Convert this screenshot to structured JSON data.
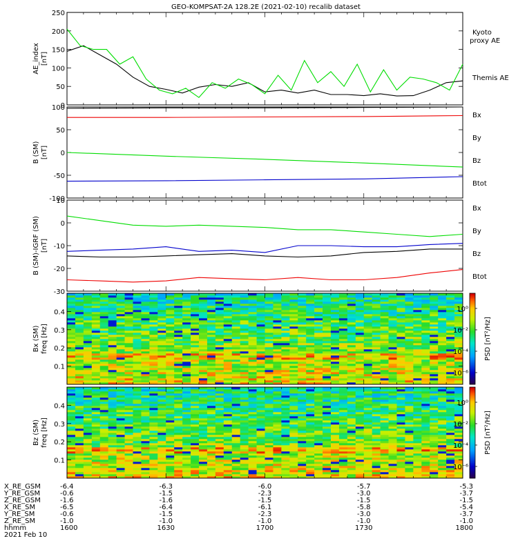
{
  "title": "GEO-KOMPSAT-2A 128.2E (2021-02-10) recalib dataset",
  "chart_data": [
    {
      "id": "ae",
      "type": "line",
      "ylabel": "AE_index",
      "yunit": "[nT]",
      "ylim": [
        0,
        250
      ],
      "yticks": [
        0,
        50,
        100,
        150,
        200,
        250
      ],
      "xlim": [
        0,
        120
      ],
      "series": [
        {
          "name": "Themis AE",
          "color": "#000000",
          "x": [
            0,
            5,
            10,
            15,
            20,
            25,
            30,
            35,
            40,
            45,
            50,
            55,
            60,
            65,
            70,
            75,
            80,
            85,
            90,
            95,
            100,
            105,
            110,
            115,
            120
          ],
          "values": [
            145,
            160,
            135,
            110,
            75,
            50,
            42,
            32,
            48,
            55,
            50,
            60,
            35,
            40,
            32,
            40,
            28,
            28,
            25,
            30,
            24,
            25,
            40,
            60,
            65
          ]
        },
        {
          "name": "Kyoto proxy AE",
          "color": "#00dd00",
          "x": [
            0,
            4,
            8,
            12,
            16,
            20,
            24,
            28,
            32,
            36,
            40,
            44,
            48,
            52,
            56,
            60,
            64,
            68,
            72,
            76,
            80,
            84,
            88,
            92,
            96,
            100,
            104,
            108,
            112,
            116,
            120
          ],
          "values": [
            205,
            160,
            150,
            150,
            110,
            130,
            70,
            40,
            30,
            45,
            20,
            60,
            45,
            70,
            55,
            30,
            80,
            40,
            120,
            60,
            90,
            50,
            110,
            35,
            95,
            40,
            75,
            70,
            60,
            40,
            110
          ]
        }
      ]
    },
    {
      "id": "b",
      "type": "line",
      "ylabel": "B (SM)",
      "yunit": "[nT]",
      "ylim": [
        -100,
        100
      ],
      "yticks": [
        -100,
        -50,
        0,
        50,
        100
      ],
      "xlim": [
        0,
        120
      ],
      "series": [
        {
          "name": "Btot",
          "color": "#000000",
          "x": [
            0,
            30,
            60,
            90,
            120
          ],
          "values": [
            97,
            98,
            98,
            99,
            100
          ]
        },
        {
          "name": "Bz",
          "color": "#ee0000",
          "x": [
            0,
            30,
            60,
            90,
            120
          ],
          "values": [
            77,
            77,
            78,
            79,
            81
          ]
        },
        {
          "name": "By",
          "color": "#00dd00",
          "x": [
            0,
            30,
            60,
            90,
            120
          ],
          "values": [
            0,
            -8,
            -15,
            -23,
            -32
          ]
        },
        {
          "name": "Bx",
          "color": "#0000cc",
          "x": [
            0,
            30,
            60,
            90,
            120
          ],
          "values": [
            -63,
            -62,
            -60,
            -58,
            -53
          ]
        }
      ]
    },
    {
      "id": "db",
      "type": "line",
      "ylabel": "B (SM)-IGRF (SM)",
      "yunit": "[nT]",
      "ylim": [
        -30,
        10
      ],
      "yticks": [
        -30,
        -20,
        -10,
        0,
        10
      ],
      "xlim": [
        0,
        120
      ],
      "series": [
        {
          "name": "By",
          "color": "#00dd00",
          "x": [
            0,
            10,
            20,
            30,
            40,
            50,
            60,
            70,
            80,
            90,
            100,
            110,
            120
          ],
          "values": [
            3,
            1,
            -1,
            -1.5,
            -1,
            -1.5,
            -2,
            -3,
            -3,
            -4,
            -5,
            -6,
            -5
          ]
        },
        {
          "name": "Bx",
          "color": "#0000cc",
          "x": [
            0,
            10,
            20,
            30,
            40,
            50,
            60,
            70,
            80,
            90,
            100,
            110,
            120
          ],
          "values": [
            -12.5,
            -12,
            -11.5,
            -10.5,
            -12.5,
            -12,
            -13,
            -10,
            -10,
            -10.5,
            -10.5,
            -9.5,
            -9
          ]
        },
        {
          "name": "Btot",
          "color": "#000000",
          "x": [
            0,
            10,
            20,
            30,
            40,
            50,
            60,
            70,
            80,
            90,
            100,
            110,
            120
          ],
          "values": [
            -14.5,
            -15,
            -15,
            -14.5,
            -14,
            -13.5,
            -14.5,
            -15,
            -14.5,
            -13,
            -12.5,
            -11.5,
            -11.5
          ]
        },
        {
          "name": "Bz",
          "color": "#ee0000",
          "x": [
            0,
            10,
            20,
            30,
            40,
            50,
            60,
            70,
            80,
            90,
            100,
            110,
            120
          ],
          "values": [
            -25,
            -25.5,
            -26,
            -25.5,
            -24,
            -24.5,
            -25,
            -24,
            -25,
            -25,
            -24,
            -22,
            -20.5
          ]
        }
      ]
    },
    {
      "id": "bx_spec",
      "type": "heatmap",
      "ylabel": "Bx (SM)",
      "yunit": "freq [Hz]",
      "ylim": [
        0,
        0.5
      ],
      "yticks": [
        0.1,
        0.2,
        0.3,
        0.4
      ],
      "colorbar_label": "PSD [nT²/Hz]",
      "colorbar_ticks": [
        "10⁰",
        "10⁻²",
        "10⁻⁴",
        "10⁻⁶"
      ]
    },
    {
      "id": "bz_spec",
      "type": "heatmap",
      "ylabel": "Bz (SM)",
      "yunit": "freq [Hz]",
      "ylim": [
        0,
        0.5
      ],
      "yticks": [
        0.1,
        0.2,
        0.3,
        0.4
      ],
      "colorbar_label": "PSD [nT²/Hz]",
      "colorbar_ticks": [
        "10⁰",
        "10⁻²",
        "10⁻⁴",
        "10⁻⁶"
      ]
    }
  ],
  "ephemeris": {
    "rows": [
      {
        "label": "X_RE_GSM",
        "values": [
          "-6.4",
          "-6.3",
          "-6.0",
          "-5.7",
          "-5.3"
        ]
      },
      {
        "label": "Y_RE_GSM",
        "values": [
          "-0.6",
          "-1.5",
          "-2.3",
          "-3.0",
          "-3.7"
        ]
      },
      {
        "label": "Z_RE_GSM",
        "values": [
          "-1.6",
          "-1.6",
          "-1.5",
          "-1.5",
          "-1.5"
        ]
      },
      {
        "label": "X_RE_SM",
        "values": [
          "-6.5",
          "-6.4",
          "-6.1",
          "-5.8",
          "-5.4"
        ]
      },
      {
        "label": "Y_RE_SM",
        "values": [
          "-0.6",
          "-1.5",
          "-2.3",
          "-3.0",
          "-3.7"
        ]
      },
      {
        "label": "Z_RE_SM",
        "values": [
          "-1.0",
          "-1.0",
          "-1.0",
          "-1.0",
          "-1.0"
        ]
      },
      {
        "label": "hhmm",
        "values": [
          "1600",
          "1630",
          "1700",
          "1730",
          "1800"
        ]
      }
    ],
    "date": "2021 Feb 10"
  }
}
